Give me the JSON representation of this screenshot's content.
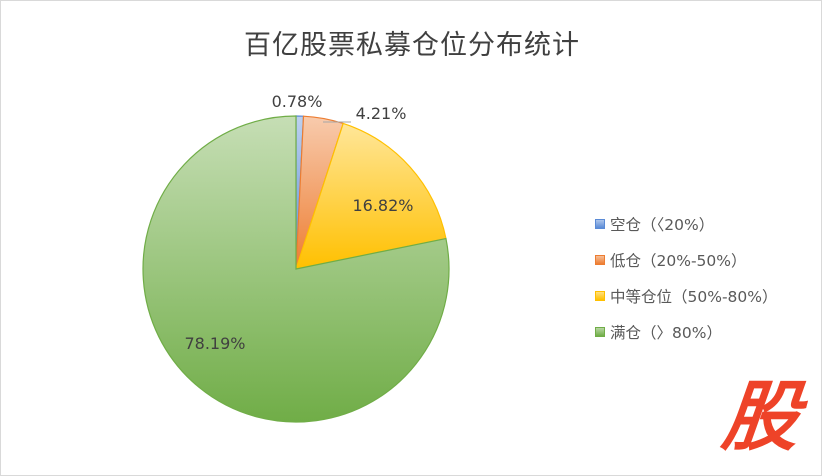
{
  "chart_data": {
    "type": "pie",
    "title": "百亿股票私募仓位分布统计",
    "categories": [
      "空仓（〈20%）",
      "低仓（20%-50%）",
      "中等仓位（50%-80%）",
      "满仓（〉80%）"
    ],
    "values": [
      0.78,
      4.21,
      16.82,
      78.19
    ],
    "data_labels": [
      "0.78%",
      "4.21%",
      "16.82%",
      "78.19%"
    ],
    "colors": [
      "#5b8bd6",
      "#ed7d31",
      "#ffc000",
      "#70ad47"
    ],
    "legend_position": "right",
    "start_angle": "top, clockwise"
  },
  "watermark": {
    "text": "股",
    "color": "#ee4328"
  }
}
